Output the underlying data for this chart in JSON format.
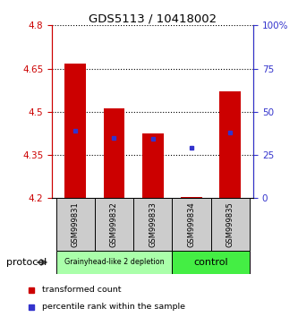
{
  "title": "GDS5113 / 10418002",
  "samples": [
    "GSM999831",
    "GSM999832",
    "GSM999833",
    "GSM999834",
    "GSM999835"
  ],
  "red_bar_bottoms": [
    4.2,
    4.2,
    4.2,
    4.2,
    4.2
  ],
  "red_bar_tops": [
    4.668,
    4.513,
    4.425,
    4.205,
    4.572
  ],
  "blue_marker_y": [
    4.435,
    4.41,
    4.405,
    4.375,
    4.427
  ],
  "ylim": [
    4.2,
    4.8
  ],
  "yticks_left": [
    4.2,
    4.35,
    4.5,
    4.65,
    4.8
  ],
  "yticks_right": [
    0,
    25,
    50,
    75,
    100
  ],
  "ytick_labels_right": [
    "0",
    "25",
    "50",
    "75",
    "100%"
  ],
  "group1_label": "Grainyhead-like 2 depletion",
  "group1_color": "#aaffaa",
  "group1_samples": 3,
  "group2_label": "control",
  "group2_color": "#44ee44",
  "group2_samples": 2,
  "protocol_label": "protocol",
  "legend_red": "transformed count",
  "legend_blue": "percentile rank within the sample",
  "bar_color": "#cc0000",
  "blue_color": "#3333cc",
  "left_axis_color": "#cc0000",
  "right_axis_color": "#3333cc",
  "bar_width": 0.55,
  "sample_box_color": "#cccccc"
}
